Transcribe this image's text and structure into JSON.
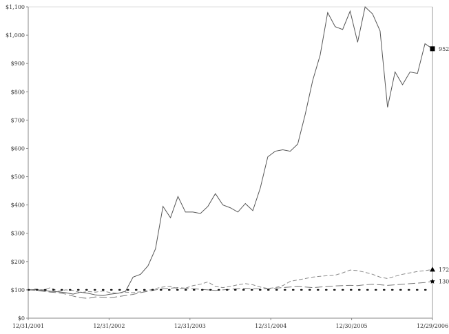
{
  "chart_data": {
    "type": "line",
    "title": "",
    "xlabel": "",
    "ylabel": "",
    "x_tick_labels": [
      "12/31/2001",
      "12/31/2002",
      "12/31/2003",
      "12/31/2004",
      "12/30/2005",
      "12/29/2006"
    ],
    "y_tick_labels": [
      "$0",
      "$100",
      "$200",
      "$300",
      "$400",
      "$500",
      "$600",
      "$700",
      "$800",
      "$900",
      "$1,000",
      "$1,100"
    ],
    "ylim": [
      0,
      1100
    ],
    "grid": false,
    "series": [
      {
        "style": "solid",
        "marker": "square",
        "end_label": "952",
        "color": "#555555",
        "values": [
          100,
          101,
          98,
          95,
          93,
          90,
          85,
          92,
          88,
          82,
          80,
          85,
          88,
          95,
          145,
          155,
          185,
          245,
          395,
          355,
          430,
          375,
          375,
          370,
          395,
          440,
          400,
          390,
          375,
          405,
          380,
          460,
          570,
          590,
          595,
          590,
          615,
          720,
          840,
          930,
          1080,
          1030,
          1020,
          1085,
          975,
          1100,
          1075,
          1015,
          745,
          870,
          825,
          870,
          865,
          970,
          952
        ]
      },
      {
        "style": "dashed",
        "marker": "triangle",
        "end_label": "172",
        "color": "#888888",
        "values": [
          100,
          103,
          100,
          108,
          95,
          100,
          98,
          90,
          94,
          92,
          96,
          90,
          88,
          92,
          90,
          93,
          98,
          105,
          110,
          112,
          104,
          106,
          115,
          120,
          128,
          112,
          108,
          112,
          118,
          122,
          118,
          110,
          105,
          108,
          115,
          130,
          135,
          140,
          145,
          148,
          150,
          152,
          160,
          170,
          168,
          162,
          155,
          145,
          140,
          148,
          155,
          160,
          165,
          168,
          172
        ]
      },
      {
        "style": "long-dash",
        "marker": "star",
        "end_label": "130",
        "color": "#777777",
        "values": [
          100,
          98,
          95,
          92,
          90,
          85,
          78,
          72,
          70,
          75,
          74,
          72,
          76,
          80,
          84,
          90,
          95,
          100,
          104,
          106,
          108,
          106,
          104,
          102,
          100,
          98,
          100,
          102,
          104,
          106,
          104,
          103,
          104,
          106,
          108,
          110,
          112,
          110,
          108,
          110,
          112,
          114,
          115,
          116,
          115,
          118,
          120,
          118,
          116,
          118,
          120,
          122,
          124,
          126,
          130
        ]
      },
      {
        "style": "dotted",
        "marker": "none",
        "end_label": "",
        "color": "#111111",
        "values": [
          100,
          100,
          100,
          100,
          100,
          100,
          100,
          100,
          100,
          100,
          100,
          100,
          100,
          100,
          100,
          100,
          100,
          100,
          100,
          100,
          100,
          100,
          100,
          100,
          100,
          100,
          100,
          100,
          100,
          100,
          100,
          100,
          100,
          100,
          100,
          100,
          100,
          100,
          100,
          100,
          100,
          100,
          100,
          100,
          100,
          100,
          100,
          100,
          100,
          100,
          100,
          100,
          100,
          100,
          100
        ]
      }
    ]
  }
}
